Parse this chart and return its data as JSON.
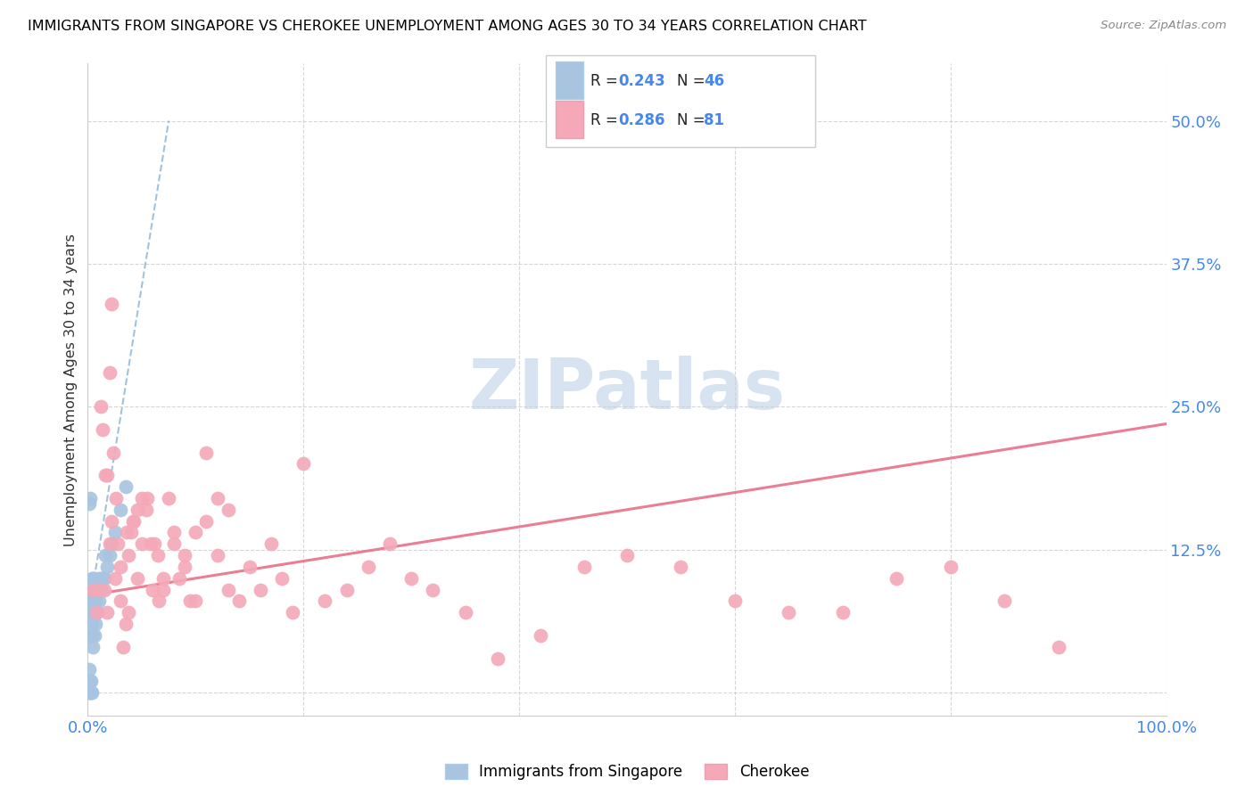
{
  "title": "IMMIGRANTS FROM SINGAPORE VS CHEROKEE UNEMPLOYMENT AMONG AGES 30 TO 34 YEARS CORRELATION CHART",
  "source": "Source: ZipAtlas.com",
  "ylabel": "Unemployment Among Ages 30 to 34 years",
  "xlim": [
    0,
    1.0
  ],
  "ylim": [
    -0.02,
    0.55
  ],
  "ytick_positions": [
    0.0,
    0.125,
    0.25,
    0.375,
    0.5
  ],
  "yticklabels": [
    "",
    "12.5%",
    "25.0%",
    "37.5%",
    "50.0%"
  ],
  "singapore_R": 0.243,
  "singapore_N": 46,
  "cherokee_R": 0.286,
  "cherokee_N": 81,
  "singapore_color": "#a8c4e0",
  "cherokee_color": "#f4a8b8",
  "singapore_trend_color": "#90b8d8",
  "cherokee_trend_color": "#e8708a",
  "label_color": "#4488ee",
  "watermark_color": "#c8d8ec",
  "singapore_trend_x": [
    0.0,
    0.075
  ],
  "singapore_trend_y": [
    0.065,
    0.5
  ],
  "cherokee_trend_x": [
    0.0,
    1.0
  ],
  "cherokee_trend_y": [
    0.085,
    0.235
  ],
  "singapore_x": [
    0.001,
    0.001,
    0.001,
    0.001,
    0.002,
    0.002,
    0.002,
    0.002,
    0.003,
    0.003,
    0.003,
    0.003,
    0.004,
    0.004,
    0.004,
    0.004,
    0.005,
    0.005,
    0.005,
    0.005,
    0.005,
    0.006,
    0.006,
    0.006,
    0.006,
    0.007,
    0.007,
    0.007,
    0.008,
    0.008,
    0.009,
    0.009,
    0.01,
    0.01,
    0.011,
    0.012,
    0.013,
    0.014,
    0.015,
    0.016,
    0.018,
    0.02,
    0.022,
    0.025,
    0.03,
    0.035
  ],
  "singapore_y": [
    0.0,
    0.01,
    0.02,
    0.165,
    0.0,
    0.01,
    0.05,
    0.17,
    0.0,
    0.01,
    0.07,
    0.09,
    0.0,
    0.06,
    0.08,
    0.1,
    0.04,
    0.05,
    0.07,
    0.08,
    0.1,
    0.05,
    0.07,
    0.08,
    0.1,
    0.06,
    0.08,
    0.09,
    0.07,
    0.09,
    0.07,
    0.09,
    0.08,
    0.1,
    0.09,
    0.1,
    0.09,
    0.1,
    0.1,
    0.12,
    0.11,
    0.12,
    0.13,
    0.14,
    0.16,
    0.18
  ],
  "cherokee_x": [
    0.005,
    0.008,
    0.01,
    0.012,
    0.014,
    0.016,
    0.018,
    0.02,
    0.022,
    0.024,
    0.026,
    0.028,
    0.03,
    0.033,
    0.036,
    0.038,
    0.04,
    0.043,
    0.046,
    0.05,
    0.054,
    0.058,
    0.062,
    0.066,
    0.07,
    0.075,
    0.08,
    0.085,
    0.09,
    0.095,
    0.1,
    0.11,
    0.12,
    0.13,
    0.14,
    0.15,
    0.16,
    0.17,
    0.18,
    0.19,
    0.2,
    0.22,
    0.24,
    0.26,
    0.28,
    0.3,
    0.32,
    0.35,
    0.38,
    0.42,
    0.46,
    0.5,
    0.55,
    0.6,
    0.65,
    0.7,
    0.75,
    0.8,
    0.85,
    0.9,
    0.015,
    0.018,
    0.02,
    0.022,
    0.025,
    0.03,
    0.035,
    0.038,
    0.042,
    0.046,
    0.05,
    0.055,
    0.06,
    0.065,
    0.07,
    0.08,
    0.09,
    0.1,
    0.11,
    0.12,
    0.13
  ],
  "cherokee_y": [
    0.09,
    0.07,
    0.09,
    0.25,
    0.23,
    0.19,
    0.19,
    0.13,
    0.15,
    0.21,
    0.17,
    0.13,
    0.11,
    0.04,
    0.14,
    0.12,
    0.14,
    0.15,
    0.1,
    0.17,
    0.16,
    0.13,
    0.13,
    0.08,
    0.09,
    0.17,
    0.13,
    0.1,
    0.12,
    0.08,
    0.14,
    0.15,
    0.12,
    0.16,
    0.08,
    0.11,
    0.09,
    0.13,
    0.1,
    0.07,
    0.2,
    0.08,
    0.09,
    0.11,
    0.13,
    0.1,
    0.09,
    0.07,
    0.03,
    0.05,
    0.11,
    0.12,
    0.11,
    0.08,
    0.07,
    0.07,
    0.1,
    0.11,
    0.08,
    0.04,
    0.09,
    0.07,
    0.28,
    0.34,
    0.1,
    0.08,
    0.06,
    0.07,
    0.15,
    0.16,
    0.13,
    0.17,
    0.09,
    0.12,
    0.1,
    0.14,
    0.11,
    0.08,
    0.21,
    0.17,
    0.09
  ]
}
